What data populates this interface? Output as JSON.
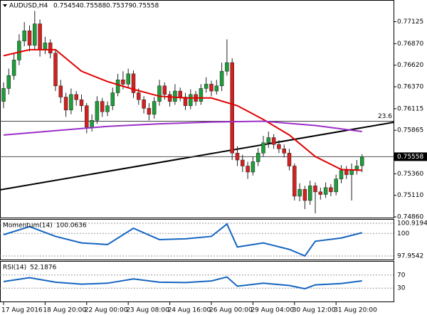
{
  "chart_data": {
    "type": "candlestick",
    "title": "AUDUSD,H4",
    "categories": [
      "17 Aug 2016",
      null,
      null,
      null,
      null,
      null,
      null,
      null,
      "18 Aug 20:00",
      null,
      null,
      null,
      null,
      null,
      null,
      null,
      "22 Aug 00:00",
      null,
      null,
      null,
      null,
      null,
      null,
      null,
      "23 Aug 08:00",
      null,
      null,
      null,
      null,
      null,
      null,
      null,
      "24 Aug 16:00",
      null,
      null,
      null,
      null,
      null,
      null,
      null,
      "26 Aug 00:00",
      null,
      null,
      null,
      null,
      null,
      null,
      null,
      "29 Aug 04:00",
      null,
      null,
      null,
      null,
      null,
      null,
      null,
      "30 Aug 12:00",
      null,
      null,
      null,
      null,
      null,
      null,
      null,
      "31 Aug 20:00",
      null,
      null,
      null,
      null,
      null
    ],
    "open": [
      0.762,
      0.7635,
      0.765,
      0.7668,
      0.769,
      0.7702,
      0.7685,
      0.771,
      0.768,
      0.7688,
      0.7676,
      0.7638,
      0.7625,
      0.761,
      0.7628,
      0.7622,
      0.7615,
      0.759,
      0.7598,
      0.762,
      0.7608,
      0.7615,
      0.763,
      0.7645,
      0.764,
      0.7652,
      0.763,
      0.7622,
      0.7612,
      0.7605,
      0.762,
      0.7638,
      0.7628,
      0.762,
      0.7632,
      0.7625,
      0.7615,
      0.7628,
      0.762,
      0.7635,
      0.764,
      0.7632,
      0.7638,
      0.7655,
      0.7665,
      0.756,
      0.7552,
      0.7545,
      0.7538,
      0.755,
      0.756,
      0.7572,
      0.7578,
      0.757,
      0.7565,
      0.756,
      0.7545,
      0.751,
      0.7518,
      0.7505,
      0.7522,
      0.7515,
      0.7512,
      0.752,
      0.7515,
      0.753,
      0.754,
      0.7535,
      0.754,
      0.75454
    ],
    "high": [
      0.7642,
      0.7658,
      0.7675,
      0.7698,
      0.7712,
      0.7708,
      0.7725,
      0.7715,
      0.7695,
      0.7692,
      0.768,
      0.7645,
      0.763,
      0.7635,
      0.7632,
      0.7628,
      0.7618,
      0.7605,
      0.7626,
      0.7624,
      0.762,
      0.7636,
      0.7652,
      0.7655,
      0.7658,
      0.7656,
      0.7635,
      0.7626,
      0.7618,
      0.7625,
      0.7645,
      0.7642,
      0.7632,
      0.764,
      0.7636,
      0.763,
      0.7634,
      0.7632,
      0.764,
      0.7648,
      0.7644,
      0.7645,
      0.7665,
      0.7692,
      0.767,
      0.7568,
      0.7558,
      0.755,
      0.7556,
      0.7566,
      0.758,
      0.7585,
      0.7582,
      0.7575,
      0.757,
      0.7565,
      0.7548,
      0.7525,
      0.7522,
      0.7528,
      0.7526,
      0.752,
      0.7526,
      0.7524,
      0.7535,
      0.7546,
      0.7545,
      0.7548,
      0.7552,
      0.75588
    ],
    "low": [
      0.7612,
      0.7628,
      0.7645,
      0.7662,
      0.7684,
      0.7678,
      0.768,
      0.7672,
      0.7675,
      0.767,
      0.7632,
      0.7618,
      0.7602,
      0.7605,
      0.7615,
      0.7608,
      0.7583,
      0.7585,
      0.7594,
      0.7602,
      0.7603,
      0.761,
      0.7626,
      0.7634,
      0.7636,
      0.7624,
      0.7616,
      0.7606,
      0.7598,
      0.76,
      0.7615,
      0.7622,
      0.7614,
      0.7616,
      0.762,
      0.761,
      0.7611,
      0.7615,
      0.7616,
      0.763,
      0.7626,
      0.7628,
      0.7632,
      0.765,
      0.7552,
      0.7545,
      0.7538,
      0.753,
      0.7534,
      0.7545,
      0.7556,
      0.7566,
      0.7565,
      0.756,
      0.7555,
      0.754,
      0.7505,
      0.7504,
      0.7495,
      0.75,
      0.749,
      0.7506,
      0.7508,
      0.751,
      0.7511,
      0.7525,
      0.753,
      0.7505,
      0.7535,
      0.75379
    ],
    "close": [
      0.7635,
      0.765,
      0.7668,
      0.769,
      0.7702,
      0.7685,
      0.771,
      0.768,
      0.7688,
      0.7676,
      0.7638,
      0.7625,
      0.761,
      0.7628,
      0.7622,
      0.7615,
      0.759,
      0.7598,
      0.762,
      0.7608,
      0.7615,
      0.763,
      0.7645,
      0.764,
      0.7652,
      0.763,
      0.7622,
      0.7612,
      0.7605,
      0.762,
      0.7638,
      0.7628,
      0.762,
      0.7632,
      0.7625,
      0.7615,
      0.7628,
      0.762,
      0.7635,
      0.764,
      0.7632,
      0.7638,
      0.7655,
      0.7665,
      0.756,
      0.7552,
      0.7545,
      0.7538,
      0.755,
      0.756,
      0.7572,
      0.7578,
      0.757,
      0.7565,
      0.756,
      0.7545,
      0.751,
      0.7518,
      0.7505,
      0.7522,
      0.7515,
      0.7512,
      0.752,
      0.7515,
      0.753,
      0.754,
      0.7535,
      0.754,
      0.7545,
      0.75558
    ],
    "up_color": "#1f9d3a",
    "down_color": "#d42020",
    "ylim": [
      0.7486,
      0.7736
    ],
    "yticks": [
      0.77125,
      {
        "value": 0.7687,
        "label": "0.76870"
      },
      {
        "value": 0.7662,
        "label": "0.76620"
      },
      {
        "value": 0.7637,
        "label": "0.76370"
      },
      0.76115,
      0.75865,
      {
        "value": 0.7536,
        "label": "0.75360"
      },
      {
        "value": 0.7511,
        "label": "0.75110"
      },
      {
        "value": 0.7486,
        "label": "0.74860"
      }
    ],
    "fib_level": {
      "value": 0.7597,
      "label": "23.6"
    },
    "overlays": [
      {
        "color": "#e00000",
        "x": [
          0,
          5,
          10,
          15,
          20,
          25,
          30,
          35,
          40,
          45,
          50,
          55,
          60,
          65,
          69
        ],
        "values": [
          0.7673,
          0.768,
          0.768,
          0.7655,
          0.7643,
          0.7634,
          0.7626,
          0.7624,
          0.7624,
          0.7615,
          0.7599,
          0.7581,
          0.7556,
          0.7541,
          0.754
        ]
      },
      {
        "color": "#9b30c8",
        "x": [
          0,
          10,
          20,
          30,
          40,
          50,
          60,
          69
        ],
        "values": [
          0.7581,
          0.7586,
          0.7591,
          0.7594,
          0.7596,
          0.7597,
          0.7592,
          0.7585
        ]
      }
    ],
    "indicators": [
      {
        "title": "Momentum(14)",
        "color": "#1565c0",
        "ylim": [
          97.9542,
          100.9194
        ],
        "yticks": [
          100.9194,
          100,
          97.9542
        ],
        "x": [
          0,
          5,
          10,
          15,
          20,
          25,
          30,
          35,
          40,
          43,
          45,
          50,
          55,
          58,
          60,
          65,
          69
        ],
        "values": [
          99.88,
          100.62,
          99.73,
          99.14,
          98.99,
          100.47,
          99.44,
          99.51,
          99.73,
          100.85,
          98.77,
          99.14,
          98.55,
          97.96,
          99.29,
          99.58,
          100.0636
        ]
      },
      {
        "title": "RSI(14)",
        "color": "#1565c0",
        "ylim": [
          0,
          100
        ],
        "yticks": [
          70,
          30
        ],
        "x": [
          0,
          5,
          10,
          15,
          20,
          25,
          30,
          35,
          40,
          43,
          45,
          50,
          55,
          58,
          60,
          65,
          69
        ],
        "values": [
          50,
          62,
          48,
          42,
          45,
          58,
          48,
          47,
          52,
          64,
          36,
          45,
          38,
          28,
          40,
          44,
          52.1876
        ]
      }
    ]
  }
}
